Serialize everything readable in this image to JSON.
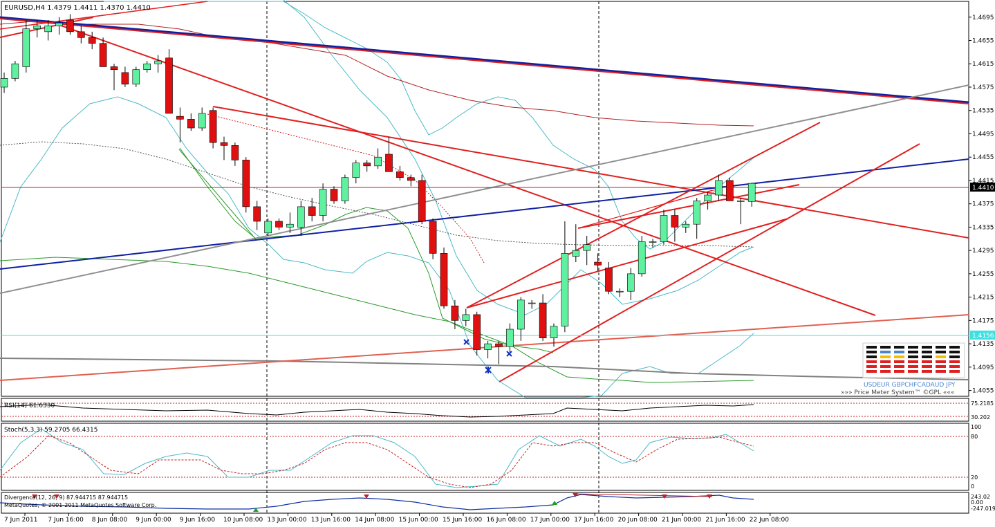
{
  "chart_data": {
    "type": "candlestick",
    "main": {
      "header": "EURUSD,H4  1.4379 1.4411 1.4370 1.4410",
      "current_price": "1.4410",
      "hline_price": "1.4156",
      "ylim": [
        1.4045,
        1.4722
      ],
      "price_ticks": [
        "1.4695",
        "1.4655",
        "1.4615",
        "1.4575",
        "1.4535",
        "1.4495",
        "1.4455",
        "1.4415",
        "1.4375",
        "1.4335",
        "1.4295",
        "1.4255",
        "1.4215",
        "1.4175",
        "1.4135",
        "1.4095",
        "1.4055"
      ],
      "candles": [
        [
          1.4575,
          1.46,
          1.4565,
          1.459
        ],
        [
          1.459,
          1.462,
          1.4585,
          1.4615
        ],
        [
          1.461,
          1.469,
          1.46,
          1.4675
        ],
        [
          1.4675,
          1.469,
          1.466,
          1.468
        ],
        [
          1.467,
          1.469,
          1.4655,
          1.468
        ],
        [
          1.468,
          1.4695,
          1.4665,
          1.4685
        ],
        [
          1.469,
          1.47,
          1.4665,
          1.467
        ],
        [
          1.467,
          1.468,
          1.465,
          1.466
        ],
        [
          1.466,
          1.467,
          1.464,
          1.465
        ],
        [
          1.465,
          1.466,
          1.461,
          1.461
        ],
        [
          1.461,
          1.4615,
          1.457,
          1.4605
        ],
        [
          1.46,
          1.461,
          1.4575,
          1.458
        ],
        [
          1.458,
          1.461,
          1.4575,
          1.4605
        ],
        [
          1.4605,
          1.462,
          1.46,
          1.4615
        ],
        [
          1.4615,
          1.463,
          1.46,
          1.462
        ],
        [
          1.4625,
          1.464,
          1.453,
          1.453
        ],
        [
          1.4525,
          1.454,
          1.448,
          1.452
        ],
        [
          1.452,
          1.453,
          1.45,
          1.4505
        ],
        [
          1.4505,
          1.454,
          1.45,
          1.453
        ],
        [
          1.4535,
          1.454,
          1.447,
          1.448
        ],
        [
          1.448,
          1.449,
          1.445,
          1.4475
        ],
        [
          1.4475,
          1.448,
          1.444,
          1.445
        ],
        [
          1.445,
          1.4455,
          1.436,
          1.437
        ],
        [
          1.437,
          1.438,
          1.433,
          1.4345
        ],
        [
          1.4325,
          1.435,
          1.432,
          1.4345
        ],
        [
          1.4345,
          1.435,
          1.433,
          1.4335
        ],
        [
          1.4335,
          1.436,
          1.4325,
          1.434
        ],
        [
          1.4335,
          1.438,
          1.432,
          1.437
        ],
        [
          1.437,
          1.4385,
          1.4345,
          1.4355
        ],
        [
          1.4355,
          1.441,
          1.4345,
          1.44
        ],
        [
          1.44,
          1.4405,
          1.4375,
          1.438
        ],
        [
          1.438,
          1.4425,
          1.4375,
          1.442
        ],
        [
          1.442,
          1.445,
          1.441,
          1.4445
        ],
        [
          1.4445,
          1.445,
          1.443,
          1.444
        ],
        [
          1.444,
          1.447,
          1.4435,
          1.4455
        ],
        [
          1.446,
          1.449,
          1.443,
          1.443
        ],
        [
          1.443,
          1.444,
          1.4415,
          1.442
        ],
        [
          1.442,
          1.4425,
          1.4405,
          1.4415
        ],
        [
          1.4415,
          1.4425,
          1.434,
          1.4345
        ],
        [
          1.4345,
          1.435,
          1.428,
          1.429
        ],
        [
          1.429,
          1.43,
          1.4195,
          1.42
        ],
        [
          1.42,
          1.421,
          1.416,
          1.4175
        ],
        [
          1.4175,
          1.4195,
          1.4165,
          1.4185
        ],
        [
          1.4185,
          1.419,
          1.4115,
          1.4125
        ],
        [
          1.4125,
          1.414,
          1.411,
          1.4135
        ],
        [
          1.4135,
          1.414,
          1.41,
          1.413
        ],
        [
          1.413,
          1.417,
          1.4115,
          1.416
        ],
        [
          1.416,
          1.4215,
          1.414,
          1.421
        ],
        [
          1.4205,
          1.421,
          1.4195,
          1.4205
        ],
        [
          1.4205,
          1.422,
          1.414,
          1.4145
        ],
        [
          1.4145,
          1.417,
          1.413,
          1.4165
        ],
        [
          1.4165,
          1.4345,
          1.4155,
          1.429
        ],
        [
          1.4285,
          1.434,
          1.4275,
          1.4295
        ],
        [
          1.4295,
          1.432,
          1.427,
          1.4305
        ],
        [
          1.4275,
          1.429,
          1.426,
          1.427
        ],
        [
          1.4265,
          1.4275,
          1.422,
          1.4225
        ],
        [
          1.4225,
          1.423,
          1.4215,
          1.4225
        ],
        [
          1.4225,
          1.4265,
          1.421,
          1.4255
        ],
        [
          1.4255,
          1.432,
          1.425,
          1.431
        ],
        [
          1.431,
          1.4315,
          1.43,
          1.431
        ],
        [
          1.431,
          1.4365,
          1.4305,
          1.4355
        ],
        [
          1.4355,
          1.4365,
          1.431,
          1.4335
        ],
        [
          1.4335,
          1.4345,
          1.4325,
          1.434
        ],
        [
          1.434,
          1.4385,
          1.4315,
          1.438
        ],
        [
          1.438,
          1.4395,
          1.4365,
          1.439
        ],
        [
          1.439,
          1.4425,
          1.438,
          1.4415
        ],
        [
          1.4415,
          1.442,
          1.4385,
          1.438
        ],
        [
          1.438,
          1.4385,
          1.434,
          1.438
        ],
        [
          1.4379,
          1.4411,
          1.437,
          1.441
        ]
      ],
      "pm_labels": "USDEUR GBPCHFCADAUD JPY",
      "pm_caption": "»»» Price Meter System™ ©GPL «««"
    },
    "rsi": {
      "label": "RSI(14) 61.6330",
      "ticks": [
        "75.2185",
        "30.202"
      ]
    },
    "stoch": {
      "label": "Stoch(5,3,3) 59.2705 66.4315",
      "ticks": [
        "100",
        "80",
        "20",
        "0"
      ]
    },
    "divergence": {
      "label": "Divergence(12, 26, 9) 87.944715 87.944715",
      "ticks": [
        "243.02",
        "0.00",
        "-247.0195"
      ],
      "copyright": "MetaQuotes, © 2001-2011 MetaQuotes Software Corp."
    },
    "x_ticks": [
      "7 Jun 2011",
      "7 Jun 16:00",
      "8 Jun 08:00",
      "9 Jun 00:00",
      "9 Jun 16:00",
      "10 Jun 08:00",
      "13 Jun 00:00",
      "13 Jun 16:00",
      "14 Jun 08:00",
      "15 Jun 00:00",
      "15 Jun 16:00",
      "16 Jun 08:00",
      "17 Jun 00:00",
      "17 Jun 16:00",
      "20 Jun 08:00",
      "21 Jun 00:00",
      "21 Jun 16:00",
      "22 Jun 08:00"
    ],
    "colors": {
      "bull": "#5ff0a0",
      "bear": "#e01010",
      "trend_red": "#e02020",
      "trend_blue": "#1020a0",
      "gray": "#909090",
      "cyan": "#49b9c8",
      "green_ma": "#2a9a2a",
      "darkred_ma": "#b02020"
    }
  }
}
